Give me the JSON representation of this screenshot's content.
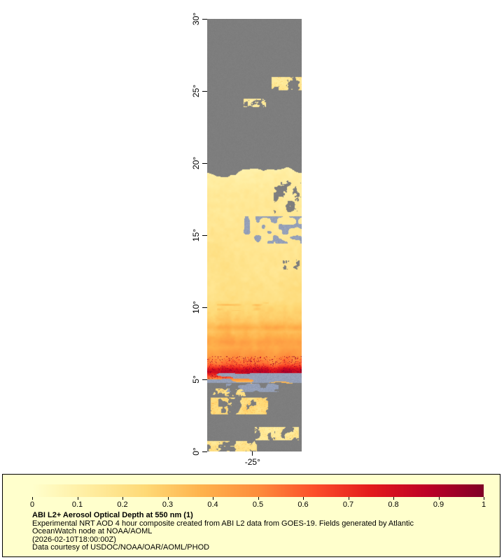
{
  "page": {
    "background": "#ffffff"
  },
  "map_area": {
    "no_data_color": "#7e7e7e",
    "cloud_color": "#95a0b8"
  },
  "legend": {
    "title": "ABI L2+ Aerosol Optical Depth at 550 nm (1)",
    "description_lines": [
      "Experimental NRT AOD 4 hour composite created from ABI L2 data from GOES-19. Fields generated by Atlantic",
      "OceanWatch node at NOAA/AOML"
    ],
    "timestamp_line": "(2026-02-10T18:00:00Z)",
    "courtesy_line": "Data courtesy of USDOC/NOAA/OAR/AOML/PHOD",
    "background": "#ffffcc",
    "border_color": "#000000"
  },
  "chart_data": {
    "type": "heatmap",
    "title": "ABI L2+ Aerosol Optical Depth at 550 nm (1)",
    "source_text": "ABI L2 data from GOES-19",
    "colorbar": {
      "min": 0,
      "max": 1,
      "ticks": [
        0,
        0.1,
        0.2,
        0.3,
        0.4,
        0.5,
        0.6,
        0.7,
        0.8,
        0.9,
        1
      ],
      "tick_labels": [
        "0",
        "0.1",
        "0.2",
        "0.3",
        "0.4",
        "0.5",
        "0.6",
        "0.7",
        "0.8",
        "0.9",
        "1"
      ]
    },
    "colormap": [
      {
        "pos": 0.0,
        "color": "#ffffcc"
      },
      {
        "pos": 0.125,
        "color": "#ffeda0"
      },
      {
        "pos": 0.25,
        "color": "#fed976"
      },
      {
        "pos": 0.375,
        "color": "#feb24c"
      },
      {
        "pos": 0.5,
        "color": "#fd8d3c"
      },
      {
        "pos": 0.625,
        "color": "#fc4e2a"
      },
      {
        "pos": 0.75,
        "color": "#e31a1c"
      },
      {
        "pos": 0.875,
        "color": "#bd0026"
      },
      {
        "pos": 1.0,
        "color": "#800026"
      }
    ],
    "y_axis": {
      "range": [
        0,
        30
      ],
      "ticks": [
        {
          "value": 0,
          "label": "0°"
        },
        {
          "value": 5,
          "label": "5°"
        },
        {
          "value": 10,
          "label": "10°"
        },
        {
          "value": 15,
          "label": "15°"
        },
        {
          "value": 20,
          "label": "20°"
        },
        {
          "value": 25,
          "label": "25°"
        },
        {
          "value": 30,
          "label": "30°"
        }
      ]
    },
    "x_axis": {
      "ticks": [
        {
          "frac": 0.48,
          "label": "-25°"
        }
      ]
    },
    "aod_lat_profile": [
      [
        4.8,
        0.32
      ],
      [
        4.95,
        0.45
      ],
      [
        5.1,
        0.55
      ],
      [
        5.3,
        0.7
      ],
      [
        5.5,
        0.85
      ],
      [
        5.7,
        0.8
      ],
      [
        5.9,
        0.65
      ],
      [
        6.1,
        0.55
      ],
      [
        6.4,
        0.5
      ],
      [
        6.8,
        0.45
      ],
      [
        7.2,
        0.4
      ],
      [
        7.6,
        0.42
      ],
      [
        8.0,
        0.36
      ],
      [
        8.3,
        0.33
      ],
      [
        8.6,
        0.38
      ],
      [
        9.0,
        0.3
      ],
      [
        9.5,
        0.26
      ],
      [
        10.0,
        0.24
      ],
      [
        10.5,
        0.2
      ],
      [
        12.0,
        0.18
      ],
      [
        14.0,
        0.17
      ],
      [
        16.0,
        0.16
      ],
      [
        18.0,
        0.15
      ],
      [
        19.0,
        0.13
      ],
      [
        19.6,
        0.1
      ]
    ],
    "features": {
      "plume": {
        "top_lat": 19.25,
        "bottom_lat": 4.78,
        "top_ragged": 1.5,
        "bottom_ragged": 0.25
      },
      "gray_holes": [
        {
          "lat": [
            16.4,
            18.8
          ],
          "f": [
            0.7,
            1.01
          ],
          "scale": 9,
          "thresh": 0.55,
          "seed": 4
        },
        {
          "lat": [
            12.6,
            13.3
          ],
          "f": [
            0.75,
            0.98
          ],
          "scale": 5,
          "thresh": 0.62,
          "seed": 6
        }
      ],
      "cloud_blobs": [
        {
          "lat": [
            14.4,
            16.3
          ],
          "f": [
            0.35,
            1.01
          ],
          "sx": 8,
          "sy": 8,
          "thresh": 0.58,
          "seed": 5
        },
        {
          "lat": [
            4.75,
            5.45
          ],
          "f": [
            0.0,
            1.01
          ],
          "sx": 26,
          "sy": 4,
          "thresh": 0.52,
          "seed": 11
        },
        {
          "lat": [
            4.15,
            4.7
          ],
          "f": [
            0.2,
            0.75
          ],
          "sx": 10,
          "sy": 5,
          "thresh": 0.56,
          "seed": 12
        }
      ],
      "aod_patches": [
        {
          "lat": [
            2.55,
            3.75
          ],
          "f": [
            0.03,
            0.64
          ],
          "aod": 0.22,
          "scale": 11,
          "thresh": 0.42,
          "seed": 21
        },
        {
          "lat": [
            0.8,
            1.7
          ],
          "f": [
            0.5,
            0.97
          ],
          "aod": 0.14,
          "scale": 9,
          "thresh": 0.45,
          "seed": 22
        },
        {
          "lat": [
            -0.05,
            0.75
          ],
          "f": [
            0.0,
            0.52
          ],
          "aod": 0.17,
          "scale": 9,
          "thresh": 0.42,
          "seed": 23
        },
        {
          "lat": [
            3.85,
            4.35
          ],
          "f": [
            0.05,
            0.4
          ],
          "aod": 0.2,
          "scale": 7,
          "thresh": 0.5,
          "seed": 24
        },
        {
          "lat": [
            25.05,
            25.95
          ],
          "f": [
            0.68,
            1.01
          ],
          "aod": 0.15,
          "scale": 9,
          "thresh": 0.4,
          "seed": 25
        },
        {
          "lat": [
            23.9,
            24.45
          ],
          "f": [
            0.38,
            0.62
          ],
          "aod": 0.12,
          "scale": 5,
          "thresh": 0.55,
          "seed": 26
        }
      ],
      "aod_boosts": [
        {
          "lat": [
            9.75,
            10.35
          ],
          "f": [
            0.1,
            0.65
          ],
          "add": 0.13,
          "sx": 14,
          "sy": 3,
          "thresh": 0.5,
          "seed": 31
        }
      ],
      "speckle": {
        "lat": [
          5.05,
          6.6
        ],
        "base_thresh": 0.78,
        "strong_thresh": 0.95
      }
    }
  }
}
